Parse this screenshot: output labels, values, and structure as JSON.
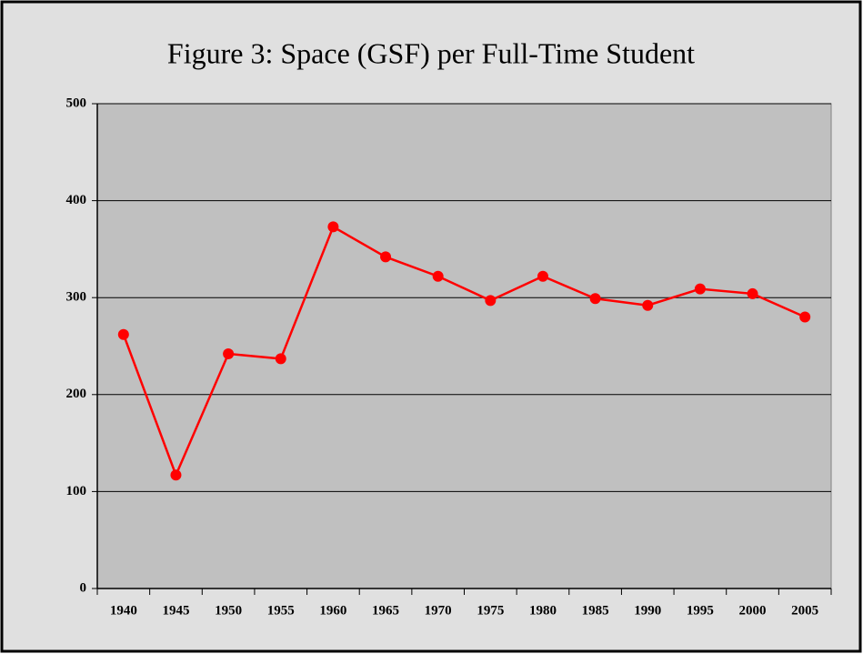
{
  "chart_data": {
    "type": "line",
    "title": "Figure 3:  Space (GSF) per Full-Time Student",
    "categories": [
      "1940",
      "1945",
      "1950",
      "1955",
      "1960",
      "1965",
      "1970",
      "1975",
      "1980",
      "1985",
      "1990",
      "1995",
      "2000",
      "2005"
    ],
    "values": [
      262,
      117,
      242,
      237,
      373,
      342,
      322,
      297,
      322,
      299,
      292,
      309,
      304,
      280
    ],
    "color": "#ff0000",
    "ylim": [
      0,
      500
    ],
    "yticks": [
      0,
      100,
      200,
      300,
      400,
      500
    ],
    "grid": true
  }
}
